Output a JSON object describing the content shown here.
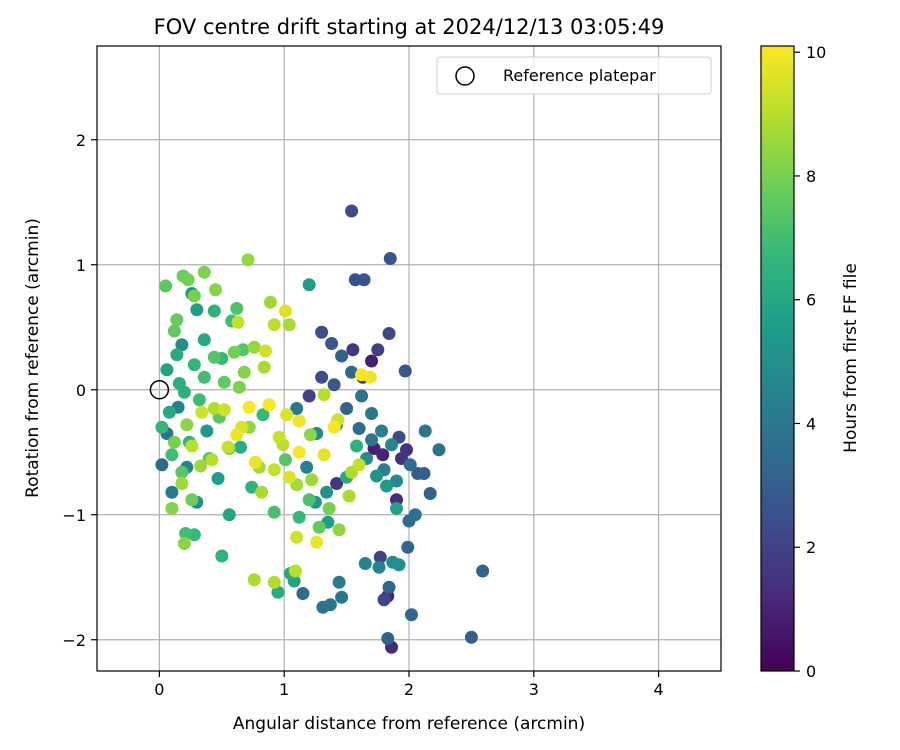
{
  "chart_data": {
    "type": "scatter",
    "title": "FOV centre drift starting at 2024/12/13 03:05:49",
    "xlabel": "Angular distance from reference (arcmin)",
    "ylabel": "Rotation from reference (arcmin)",
    "xlim": [
      -0.5,
      4.5
    ],
    "ylim": [
      -2.25,
      2.75
    ],
    "xticks": [
      0,
      1,
      2,
      3,
      4
    ],
    "yticks": [
      -2,
      -1,
      0,
      1,
      2
    ],
    "xtick_labels": [
      "0",
      "1",
      "2",
      "3",
      "4"
    ],
    "ytick_labels": [
      "−2",
      "−1",
      "0",
      "1",
      "2"
    ],
    "grid": true,
    "legend": {
      "placement": "top-right",
      "entries": [
        {
          "label": "Reference platepar",
          "marker": "open-circle"
        }
      ]
    },
    "reference_point": {
      "x": 0,
      "y": 0
    },
    "colorbar": {
      "label": "Hours from first FF file",
      "range": [
        0,
        10.1
      ],
      "ticks": [
        0,
        2,
        4,
        6,
        8,
        10
      ],
      "tick_labels": [
        "0",
        "2",
        "4",
        "6",
        "8",
        "10"
      ],
      "colormap": "viridis",
      "colors": [
        "#440154",
        "#482878",
        "#3e4989",
        "#31688e",
        "#26828e",
        "#1f9e89",
        "#35b779",
        "#6ece58",
        "#b5de2b",
        "#fde725"
      ]
    },
    "series": [
      {
        "c": [
          0.8,
          0.9,
          1.0,
          1.1,
          1.2,
          1.3,
          1.4,
          1.5
        ],
        "x": [
          1.7,
          1.72,
          1.79,
          1.83,
          1.86,
          1.9,
          1.94,
          1.98
        ],
        "y": [
          0.23,
          -0.47,
          -0.52,
          -1.65,
          -2.06,
          -0.88,
          -0.55,
          -0.48
        ]
      },
      {
        "c": [
          1.6,
          1.7,
          1.8,
          1.9,
          2.0,
          2.1,
          2.2,
          2.3
        ],
        "x": [
          1.42,
          1.55,
          1.63,
          1.75,
          1.77,
          1.8,
          1.84,
          1.92
        ],
        "y": [
          -0.75,
          0.32,
          0.1,
          0.32,
          -1.34,
          -1.68,
          0.45,
          -0.38
        ]
      },
      {
        "c": [
          2.4,
          2.5,
          2.6,
          2.7,
          2.8,
          2.9,
          3.0,
          3.1
        ],
        "x": [
          1.54,
          1.57,
          1.64,
          1.85,
          1.97,
          2.07,
          2.12,
          2.17
        ],
        "y": [
          1.43,
          0.88,
          0.88,
          1.05,
          0.15,
          -0.67,
          -0.67,
          -0.83
        ]
      },
      {
        "c": [
          3.2,
          3.3,
          3.4,
          3.5,
          3.6,
          3.7,
          3.8,
          3.9
        ],
        "x": [
          1.83,
          1.84,
          1.99,
          2.0,
          2.01,
          2.05,
          2.13,
          2.24
        ],
        "y": [
          -1.99,
          -1.58,
          -1.26,
          -1.05,
          -0.6,
          -1.0,
          -0.33,
          -0.48
        ]
      },
      {
        "c": [
          3.0,
          3.2,
          3.4,
          3.6,
          3.8,
          4.0
        ],
        "x": [
          2.5,
          2.59,
          2.02,
          1.15,
          1.31,
          1.46
        ],
        "y": [
          -1.98,
          -1.45,
          -1.8,
          -1.63,
          -1.74,
          -1.66
        ]
      },
      {
        "c": [
          4.0,
          4.2,
          4.4,
          4.6,
          4.8,
          5.0
        ],
        "x": [
          1.37,
          1.44,
          1.65,
          1.76,
          1.87,
          1.92
        ],
        "y": [
          -1.72,
          -1.54,
          -1.39,
          -1.42,
          -1.38,
          -1.4
        ]
      },
      {
        "c": [
          5.5,
          5.8,
          6.0,
          6.2,
          6.5,
          6.8,
          7.0
        ],
        "x": [
          1.2,
          1.08,
          1.05,
          0.95,
          0.5,
          0.28,
          0.21
        ],
        "y": [
          0.84,
          -1.53,
          -1.47,
          -1.62,
          -1.33,
          -1.16,
          -1.15
        ]
      },
      {
        "c": [
          5.0,
          5.3,
          5.6,
          6.0,
          6.4,
          6.8,
          7.0,
          7.2,
          7.3
        ],
        "x": [
          0.18,
          0.26,
          0.3,
          0.36,
          0.44,
          0.5,
          0.58,
          0.62,
          0.67
        ],
        "y": [
          0.36,
          0.77,
          0.64,
          0.4,
          0.63,
          0.25,
          0.55,
          0.65,
          0.32
        ]
      },
      {
        "c": [
          7.5,
          7.6,
          7.7,
          7.8,
          7.9,
          8.0,
          8.1,
          8.2,
          8.3
        ],
        "x": [
          0.05,
          0.12,
          0.14,
          0.19,
          0.23,
          0.28,
          0.36,
          0.45,
          0.2
        ],
        "y": [
          0.83,
          0.47,
          0.56,
          0.91,
          0.88,
          0.75,
          0.94,
          0.8,
          -1.23
        ]
      },
      {
        "c": [
          8.5,
          8.6,
          8.7,
          8.8,
          8.9,
          9.0
        ],
        "x": [
          0.71,
          0.89,
          1.04,
          0.76,
          0.92,
          1.09
        ],
        "y": [
          1.04,
          0.7,
          0.52,
          -1.52,
          -1.54,
          -1.45
        ]
      },
      {
        "c": [
          9.2,
          9.4,
          9.6,
          9.8,
          10.0,
          10.0
        ],
        "x": [
          0.63,
          0.85,
          1.01,
          1.69,
          1.62,
          1.4
        ],
        "y": [
          0.54,
          0.31,
          0.63,
          0.1,
          0.12,
          -0.3
        ]
      },
      {
        "c": [
          3.5,
          3.8,
          4.1,
          4.4,
          4.7,
          5.0,
          5.3,
          5.6,
          5.9,
          6.2,
          6.5,
          6.8,
          7.1,
          7.4
        ],
        "x": [
          0.02,
          0.06,
          0.1,
          0.15,
          0.22,
          0.3,
          0.38,
          0.47,
          0.56,
          0.65,
          0.74,
          0.83,
          0.92,
          1.01
        ],
        "y": [
          -0.6,
          -0.35,
          -0.82,
          -0.14,
          -0.62,
          -0.9,
          -0.33,
          -0.71,
          -1.0,
          -0.46,
          -0.78,
          -0.2,
          -0.98,
          -0.56
        ]
      },
      {
        "c": [
          4.0,
          4.4,
          4.8,
          5.2,
          5.6,
          6.0,
          6.4,
          6.8,
          7.2,
          7.6,
          8.0,
          8.4,
          8.8,
          9.2
        ],
        "x": [
          1.1,
          1.18,
          1.26,
          1.34,
          1.42,
          1.5,
          1.58,
          1.12,
          1.2,
          1.28,
          1.36,
          1.44,
          1.52,
          1.6
        ],
        "y": [
          -0.15,
          -0.62,
          -0.35,
          -0.82,
          -0.28,
          -0.7,
          -0.45,
          -1.02,
          -0.88,
          -1.1,
          -0.95,
          -1.12,
          -0.85,
          -0.6
        ]
      },
      {
        "c": [
          2.5,
          2.8,
          3.1,
          3.4,
          3.7,
          4.0,
          4.3,
          4.6,
          4.9,
          5.2,
          5.5,
          5.8
        ],
        "x": [
          1.3,
          1.38,
          1.46,
          1.54,
          1.62,
          1.7,
          1.78,
          1.86,
          1.66,
          1.74,
          1.82,
          1.9
        ],
        "y": [
          0.46,
          0.37,
          0.27,
          0.14,
          -0.05,
          -0.19,
          -0.33,
          -0.44,
          -0.55,
          -0.69,
          -0.77,
          -0.95
        ]
      },
      {
        "c": [
          6.0,
          6.3,
          6.6,
          6.9,
          7.2,
          7.5,
          7.8,
          8.1,
          8.4,
          8.7,
          9.0,
          9.3,
          9.6,
          9.9
        ],
        "x": [
          0.08,
          0.16,
          0.24,
          0.32,
          0.4,
          0.48,
          0.56,
          0.64,
          0.72,
          0.8,
          0.88,
          0.96,
          1.04,
          1.12
        ],
        "y": [
          -0.18,
          0.05,
          -0.42,
          -0.08,
          -0.55,
          -0.22,
          -0.47,
          0.02,
          -0.3,
          -0.62,
          -0.12,
          -0.38,
          -0.7,
          -0.25
        ]
      },
      {
        "c": [
          8.0,
          8.3,
          8.6,
          8.9,
          9.2,
          9.5,
          9.8,
          10.0,
          9.1,
          8.7,
          8.4,
          9.7,
          9.3,
          8.9
        ],
        "x": [
          0.12,
          0.22,
          0.33,
          0.44,
          0.55,
          0.66,
          0.77,
          0.88,
          0.99,
          1.1,
          1.21,
          1.32,
          1.43,
          1.54
        ],
        "y": [
          -0.42,
          -0.28,
          -0.61,
          -0.15,
          -0.46,
          -0.3,
          -0.58,
          -0.12,
          -0.44,
          -0.76,
          -0.36,
          -0.52,
          -0.24,
          -0.66
        ]
      },
      {
        "c": [
          9.0,
          9.4,
          9.8,
          10.0,
          8.8,
          9.2,
          9.6,
          10.0,
          8.6,
          9.0,
          9.4,
          9.8
        ],
        "x": [
          0.42,
          0.52,
          0.62,
          0.72,
          0.82,
          0.92,
          1.02,
          1.12,
          1.22,
          1.32,
          1.1,
          1.26
        ],
        "y": [
          -0.56,
          -0.16,
          -0.36,
          -0.14,
          -0.82,
          -0.64,
          -0.2,
          -0.5,
          -0.72,
          -0.04,
          -1.18,
          -1.22
        ]
      },
      {
        "c": [
          5.8,
          6.1,
          6.4,
          6.7,
          7.0,
          7.3,
          7.6,
          7.9,
          8.2,
          8.5,
          8.8,
          9.1
        ],
        "x": [
          0.06,
          0.14,
          0.2,
          0.28,
          0.36,
          0.44,
          0.52,
          0.6,
          0.68,
          0.76,
          0.84,
          0.92
        ],
        "y": [
          0.16,
          0.28,
          -0.02,
          0.2,
          0.1,
          0.26,
          0.06,
          0.3,
          0.14,
          0.34,
          0.18,
          0.52
        ]
      },
      {
        "c": [
          2.0,
          2.4,
          2.8,
          3.2,
          3.6,
          4.0,
          4.4,
          4.8,
          5.2,
          5.6
        ],
        "x": [
          1.2,
          1.3,
          1.4,
          1.5,
          1.6,
          1.7,
          1.8,
          1.9,
          1.25,
          1.35
        ],
        "y": [
          -0.05,
          0.1,
          0.04,
          -0.15,
          -0.31,
          -0.4,
          -0.64,
          -0.73,
          -0.9,
          -1.06
        ]
      },
      {
        "c": [
          6.6,
          7.0,
          7.4,
          7.8,
          8.2,
          8.6,
          9.0,
          9.4
        ],
        "x": [
          0.02,
          0.1,
          0.18,
          0.26,
          0.1,
          0.18,
          0.26,
          0.34
        ],
        "y": [
          -0.3,
          -0.52,
          -0.66,
          -0.88,
          -0.95,
          -0.75,
          -0.45,
          -0.18
        ]
      }
    ]
  }
}
